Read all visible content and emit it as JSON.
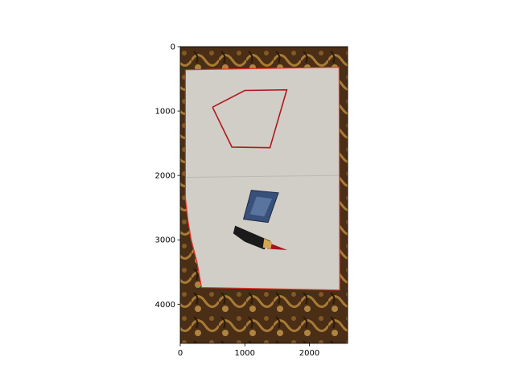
{
  "chart_data": {
    "type": "image",
    "title": "",
    "xlabel": "",
    "ylabel": "",
    "image_size": [
      2592,
      4608
    ],
    "xlim": [
      0,
      2592
    ],
    "ylim": [
      4608,
      0
    ],
    "x_ticks": [
      0,
      1000,
      2000
    ],
    "y_ticks": [
      0,
      1000,
      2000,
      3000,
      4000
    ],
    "grid": false,
    "colors": {
      "carpet": "#4a2e16",
      "carpet_pattern": "#b8893c",
      "paper": "#d1cdc7",
      "outline": "#e8332a",
      "polygon": "#b3181c",
      "patch_blue": "#38507a",
      "patch_black": "#1a1a1a",
      "patch_red": "#a3131a",
      "patch_gold": "#d3a752"
    },
    "overlays": [
      {
        "name": "paper-outline",
        "color": "#e8332a",
        "points": [
          [
            80,
            360
          ],
          [
            2460,
            320
          ],
          [
            2470,
            3780
          ],
          [
            330,
            3740
          ],
          [
            260,
            3350
          ],
          [
            170,
            3000
          ],
          [
            120,
            2700
          ],
          [
            80,
            2350
          ],
          [
            80,
            360
          ]
        ]
      },
      {
        "name": "drawn-polygon",
        "color": "#b3181c",
        "points": [
          [
            500,
            940
          ],
          [
            1000,
            680
          ],
          [
            1650,
            670
          ],
          [
            1390,
            1570
          ],
          [
            800,
            1560
          ],
          [
            500,
            940
          ]
        ]
      }
    ]
  }
}
